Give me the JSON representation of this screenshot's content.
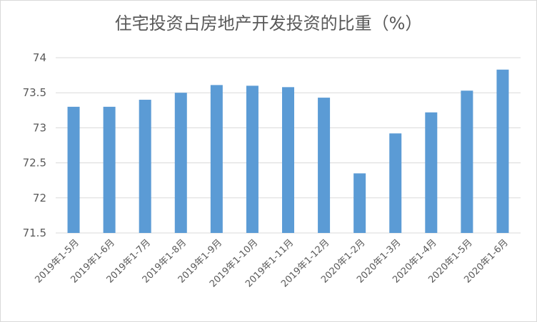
{
  "chart_data": {
    "type": "bar",
    "title": "住宅投资占房地产开发投资的比重（%）",
    "categories": [
      "2019年1-5月",
      "2019年1-6月",
      "2019年1-7月",
      "2019年1-8月",
      "2019年1-9月",
      "2019年1-10月",
      "2019年1-11月",
      "2019年1-12月",
      "2020年1-2月",
      "2020年1-3月",
      "2020年1-4月",
      "2020年1-5月",
      "2020年1-6月"
    ],
    "values": [
      73.3,
      73.3,
      73.4,
      73.5,
      73.61,
      73.6,
      73.58,
      73.43,
      72.35,
      72.92,
      73.22,
      73.53,
      73.83
    ],
    "ylim": [
      71.5,
      74
    ],
    "yticks": [
      "71.5",
      "72",
      "72.5",
      "73",
      "73.5",
      "74"
    ],
    "grid": true,
    "bar_color": "#5b9bd5",
    "grid_color": "#d9d9d9",
    "xlabel": "",
    "ylabel": ""
  }
}
